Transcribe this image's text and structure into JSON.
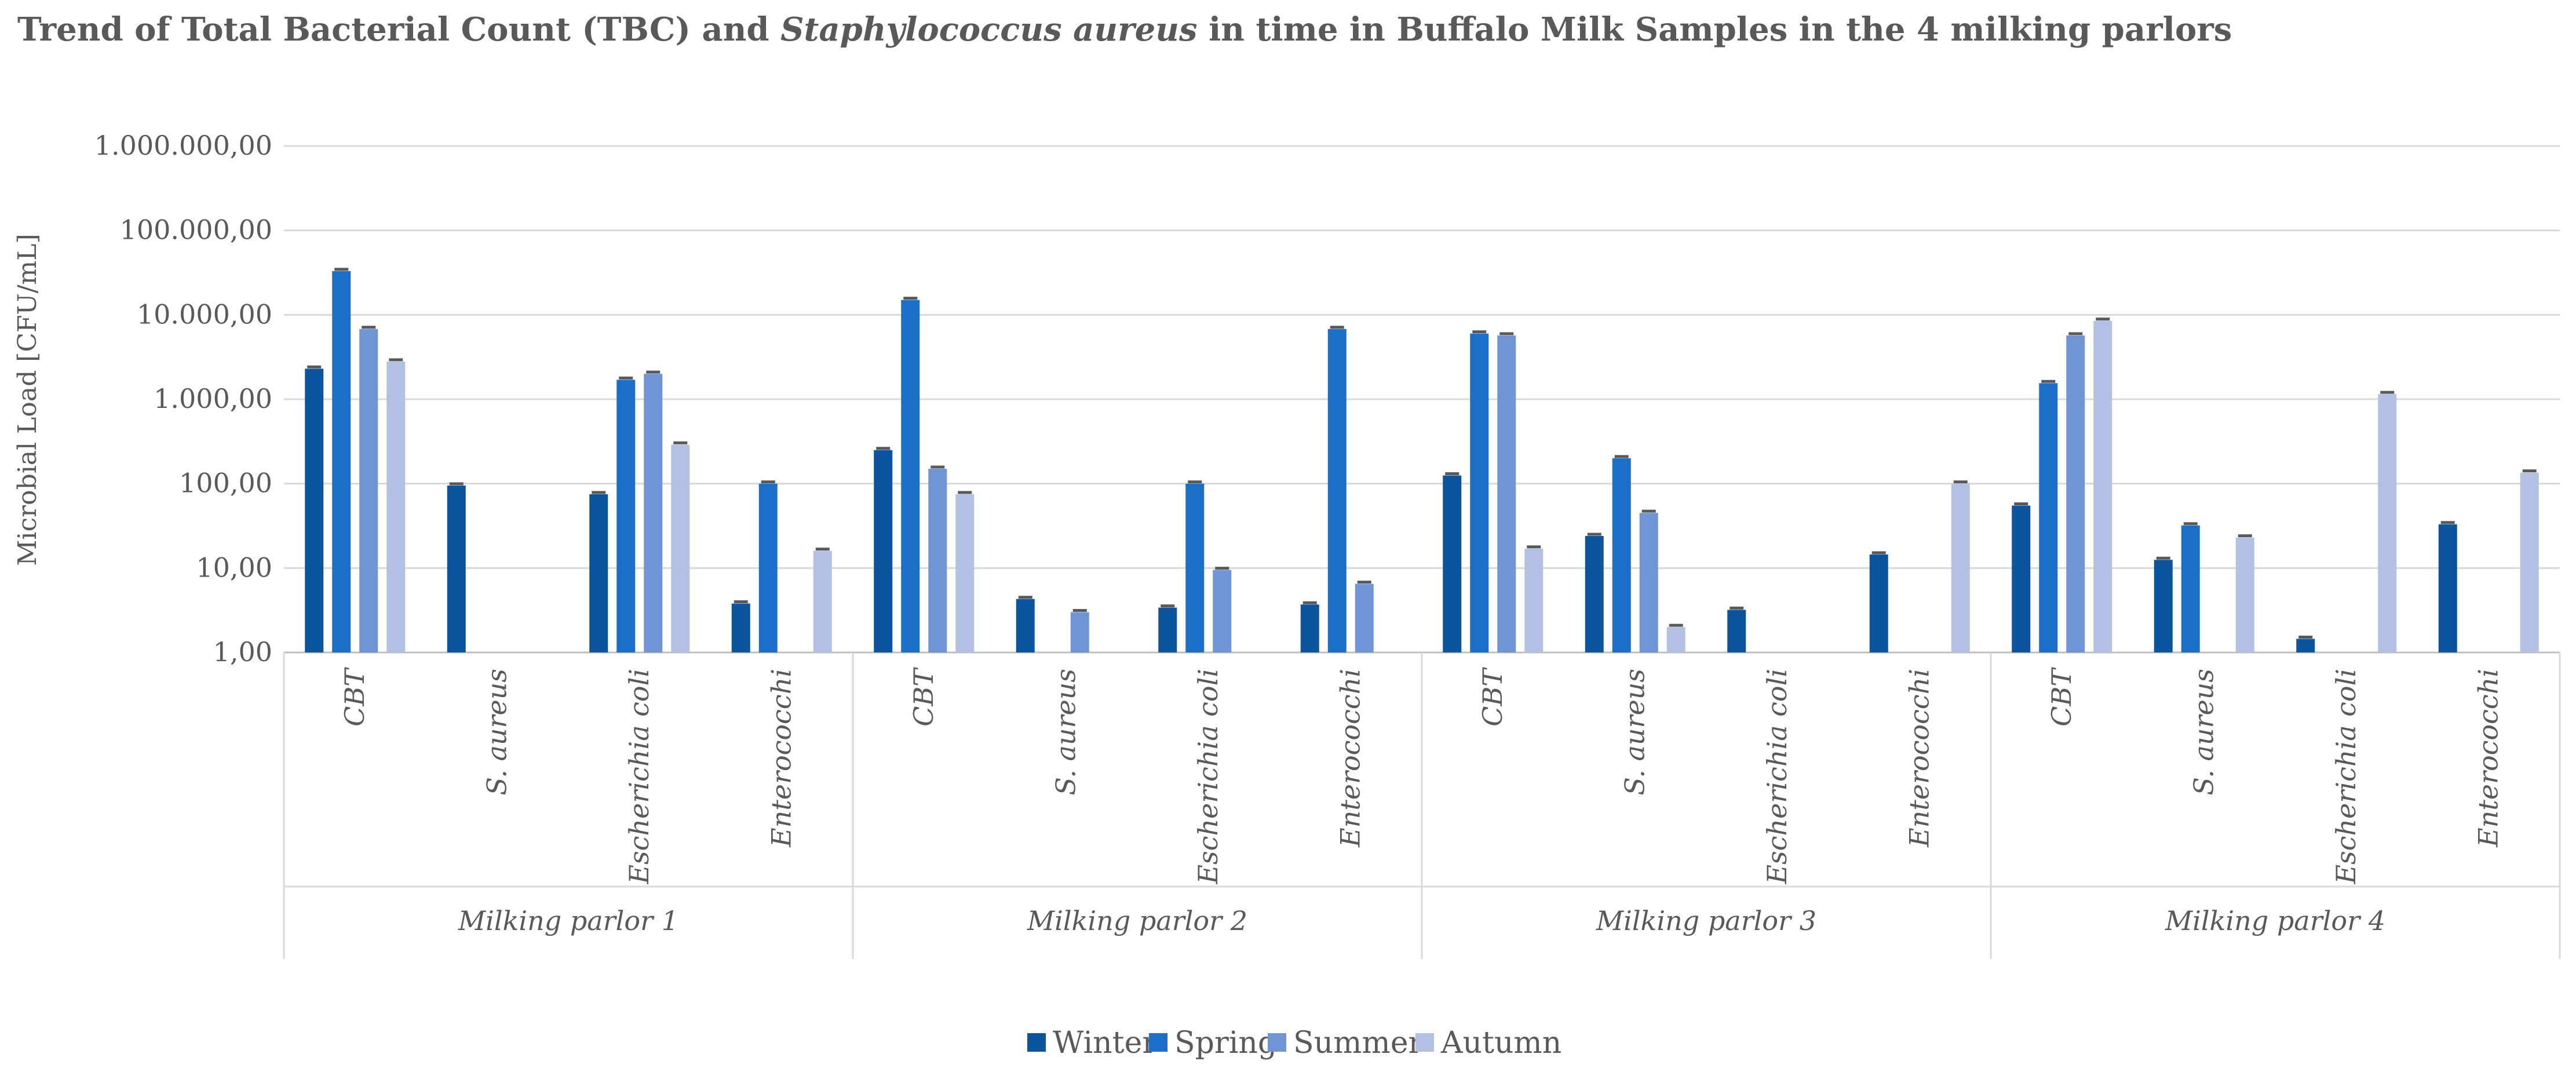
{
  "chart_data": {
    "type": "bar",
    "title_parts": [
      {
        "text": "Trend of Total Bacterial Count (TBC) and ",
        "italic": false
      },
      {
        "text": "Staphylococcus aureus",
        "italic": true
      },
      {
        "text": " in time in Buffalo Milk Samples in the 4 milking parlors",
        "italic": false
      }
    ],
    "ylabel": "Microbial Load [CFU/mL]",
    "yscale": "log",
    "ylim": [
      1,
      1000000
    ],
    "yticks": [
      1,
      10,
      100,
      1000,
      10000,
      100000,
      1000000
    ],
    "ytick_labels": [
      "1,00",
      "10,00",
      "100,00",
      "1.000,00",
      "10.000,00",
      "100.000,00",
      "1.000.000,00"
    ],
    "grid": true,
    "legend_position": "bottom-center",
    "groups": [
      "Milking parlor 1",
      "Milking parlor 2",
      "Milking parlor 3",
      "Milking parlor 4"
    ],
    "categories": [
      "CBT",
      "S. aureus",
      "Escherichia coli",
      "Enterococchi"
    ],
    "series": [
      {
        "name": "Winter",
        "color": "#0b559f",
        "values": [
          [
            2300,
            95,
            75,
            3.8
          ],
          [
            250,
            4.3,
            3.4,
            3.7
          ],
          [
            125,
            24,
            3.2,
            14.5
          ],
          [
            55,
            12.5,
            1.45,
            33
          ]
        ]
      },
      {
        "name": "Spring",
        "color": "#1b6fc9",
        "values": [
          [
            33000,
            null,
            1700,
            100
          ],
          [
            15000,
            null,
            100,
            6800
          ],
          [
            6000,
            200,
            null,
            null
          ],
          [
            1550,
            32,
            null,
            null
          ]
        ]
      },
      {
        "name": "Summer",
        "color": "#7095d6",
        "values": [
          [
            6800,
            null,
            2000,
            null
          ],
          [
            150,
            3.0,
            9.5,
            6.5
          ],
          [
            5700,
            45,
            null,
            null
          ],
          [
            5700,
            null,
            null,
            null
          ]
        ]
      },
      {
        "name": "Autumn",
        "color": "#b2c1e3",
        "values": [
          [
            2800,
            null,
            290,
            16
          ],
          [
            75,
            null,
            null,
            null
          ],
          [
            17,
            2.0,
            null,
            100
          ],
          [
            8500,
            23,
            1150,
            135
          ]
        ]
      }
    ]
  }
}
